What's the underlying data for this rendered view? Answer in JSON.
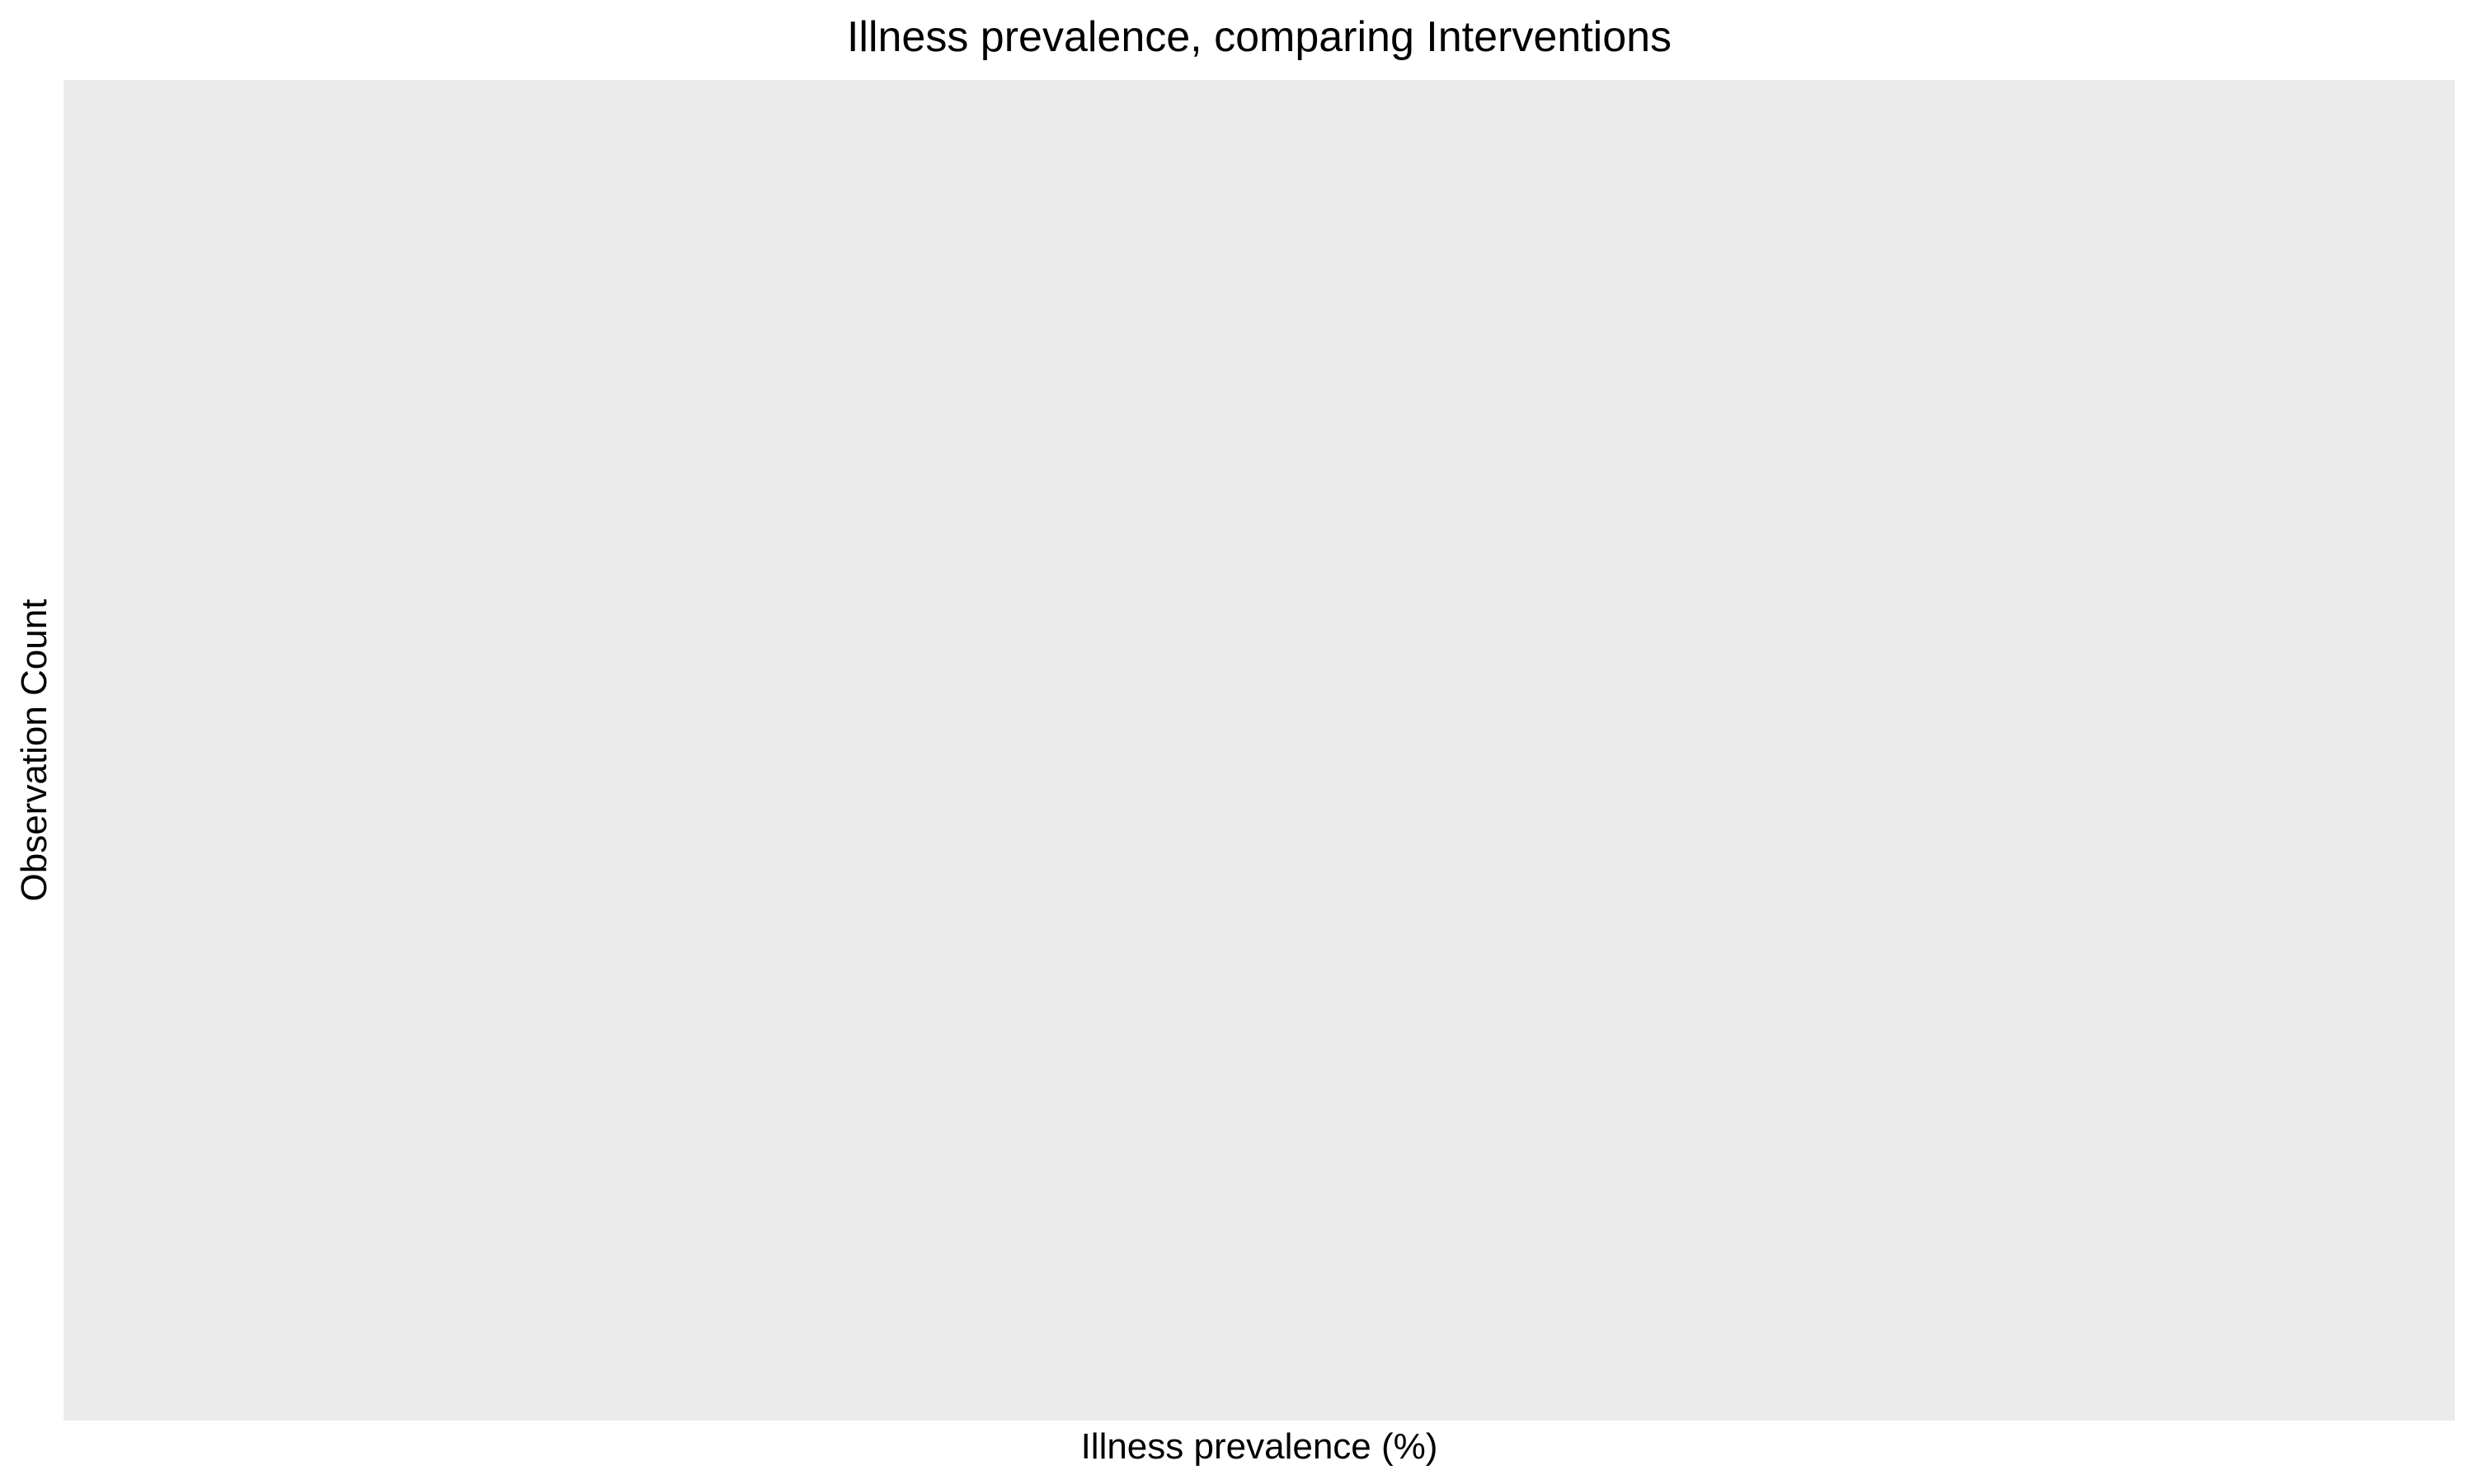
{
  "chart_data": {
    "type": "bar",
    "title": "Illness prevalence, comparing Interventions",
    "xlabel": "Illness prevalence (%)",
    "ylabel": "Observation Count",
    "categories": [],
    "series": [],
    "grid": false,
    "legend": "none",
    "colors": {
      "panel_background": "#ebebeb",
      "page_background": "#ffffff",
      "text": "#000000"
    }
  }
}
